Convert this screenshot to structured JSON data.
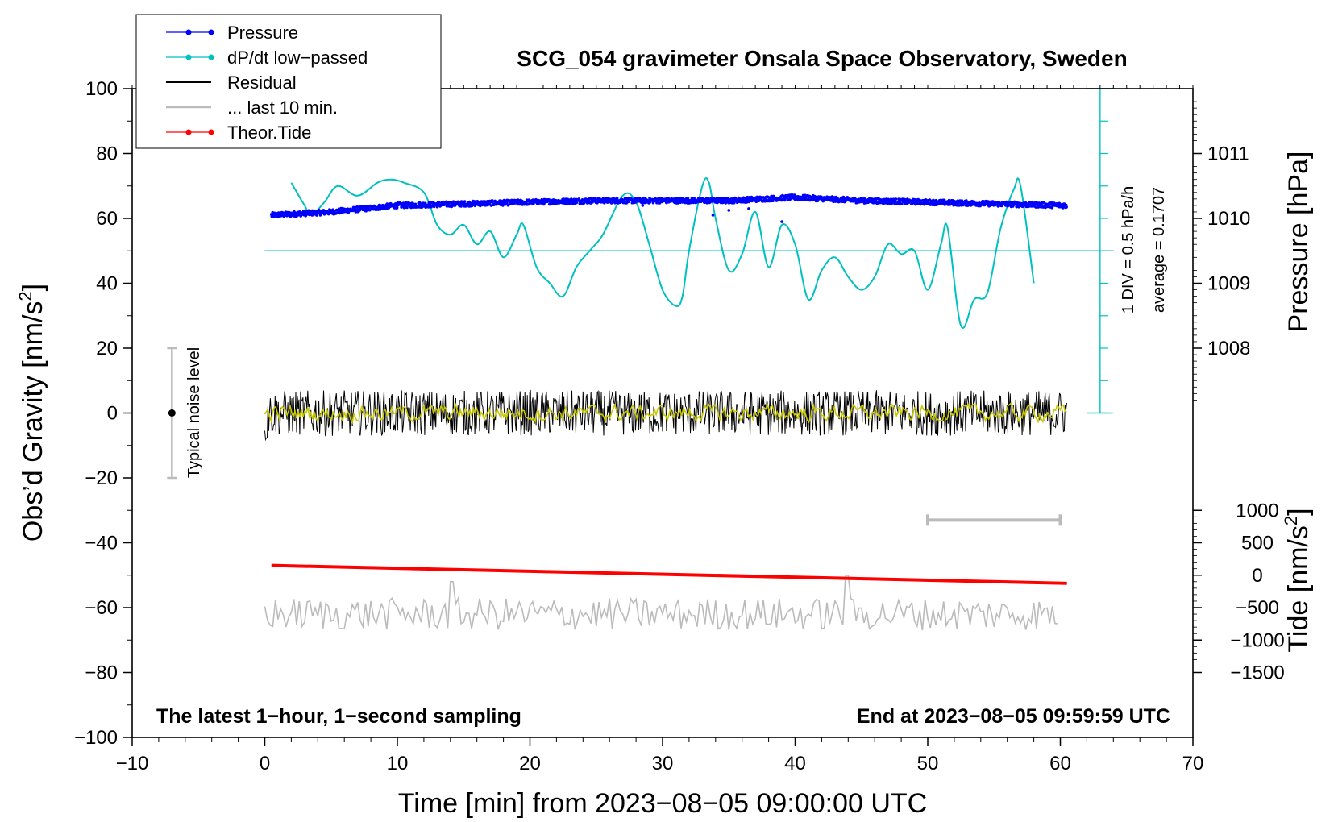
{
  "chart_data": {
    "type": "line",
    "title": "SCG_054 gravimeter Onsala Space Observatory, Sweden",
    "xlabel": "Time [min] from 2023−08−05 09:00:00 UTC",
    "ylabel_left": "Obs’d Gravity [nm/s",
    "ylabel_left_sup": "2",
    "ylabel_left_close": "]",
    "ylabel_right_top": "Pressure [hPa]",
    "ylabel_right_bottom": "Tide [nm/s",
    "ylabel_right_bottom_sup": "2",
    "ylabel_right_bottom_close": "]",
    "xlim": [
      -10,
      70
    ],
    "ylim": [
      -100,
      100
    ],
    "x_ticks": [
      -10,
      0,
      10,
      20,
      30,
      40,
      50,
      60,
      70
    ],
    "x_tick_labels": [
      "−10",
      "0",
      "10",
      "20",
      "30",
      "40",
      "50",
      "60",
      "70"
    ],
    "y_ticks": [
      -100,
      -80,
      -60,
      -40,
      -20,
      0,
      20,
      40,
      60,
      80,
      100
    ],
    "y_tick_labels": [
      "−100",
      "−80",
      "−60",
      "−40",
      "−20",
      "0",
      "20",
      "40",
      "60",
      "80",
      "100"
    ],
    "pressure_ticks": [
      1008,
      1009,
      1010,
      1011
    ],
    "pressure_tick_labels": [
      "1008",
      "1009",
      "1010",
      "1011"
    ],
    "pressure_axis": {
      "gravity_at_1008": 20,
      "gravity_per_hpa": 20
    },
    "tide_ticks": [
      -1500,
      -1000,
      -500,
      0,
      500,
      1000
    ],
    "tide_tick_labels": [
      "−1500",
      "−1000",
      "−500",
      "0",
      "500",
      "1000"
    ],
    "tide_axis": {
      "gravity_at_zero": -50,
      "gravity_per_nm": 0.02
    },
    "legend": [
      {
        "label": "Pressure",
        "color": "#0000ff",
        "marker": true
      },
      {
        "label": "dP/dt low−passed",
        "color": "#00c0c0",
        "marker": true
      },
      {
        "label": "Residual",
        "color": "#000000",
        "marker": false
      },
      {
        "label": "... last 10 min.",
        "color": "#bbbbbb",
        "marker": false
      },
      {
        "label": "Theor.Tide",
        "color": "#ff0000",
        "marker": true
      }
    ],
    "legend_position": "top-left",
    "series": [
      {
        "name": "Pressure",
        "color": "#0000ff",
        "x": [
          0.5,
          5,
          10,
          15,
          20,
          25,
          30,
          35,
          40,
          45,
          50,
          55,
          60.5
        ],
        "values": [
          61,
          62,
          64,
          64.5,
          65,
          65.5,
          65.5,
          65.5,
          66.5,
          65.5,
          65,
          64.5,
          64
        ]
      },
      {
        "name": "dP/dt low-passed",
        "color": "#00c0c0",
        "x": [
          2,
          3,
          3.5,
          4.5,
          5.5,
          7,
          8.5,
          9.5,
          10.5,
          12,
          13,
          14,
          15,
          16,
          17,
          18,
          19,
          19.5,
          20.5,
          21.5,
          22.5,
          23.5,
          24.5,
          25.5,
          27,
          28,
          29,
          30,
          31,
          31.5,
          32,
          33,
          33.5,
          34,
          35,
          36,
          37,
          38,
          39,
          40,
          41,
          42,
          43,
          44,
          45,
          46,
          47,
          48,
          49,
          50,
          51,
          51.5,
          52.5,
          53.5,
          54.5,
          55.5,
          56.5,
          57,
          58
        ],
        "values": [
          71,
          64,
          61,
          65,
          70,
          67,
          71,
          72,
          71,
          68,
          58,
          55,
          58,
          52,
          56,
          48,
          55,
          58,
          45,
          40,
          36,
          45,
          50,
          55,
          67,
          65,
          52,
          38,
          33,
          36,
          50,
          70,
          71,
          60,
          44,
          49,
          62,
          45,
          58,
          52,
          35,
          44,
          48,
          42,
          38,
          42,
          52,
          49,
          50,
          38,
          52,
          57,
          27,
          35,
          37,
          57,
          69,
          70,
          40
        ]
      },
      {
        "name": "dP/dt average line",
        "color": "#00c0c0",
        "x": [
          0,
          64
        ],
        "values": [
          50,
          50
        ]
      },
      {
        "name": "Residual",
        "color": "#000000",
        "x": [
          0,
          60.5
        ],
        "values": [
          0,
          0
        ],
        "noise_amplitude": 7
      },
      {
        "name": "Residual smoothed",
        "color": "#c8c800",
        "x": [
          0,
          60.5
        ],
        "values": [
          0,
          0
        ],
        "noise_amplitude": 2.5
      },
      {
        "name": "... last 10 min.",
        "color": "#bbbbbb",
        "x": [
          0,
          60
        ],
        "values": [
          -62,
          -62
        ],
        "noise_amplitude": 5
      },
      {
        "name": "Theor.Tide",
        "color": "#ff0000",
        "x": [
          0.5,
          60.5
        ],
        "values": [
          -47,
          -52.5
        ]
      }
    ],
    "annotations": {
      "noise_label": "Typical noise level",
      "noise_bar": {
        "x": -7,
        "y_low": -20,
        "y_high": 20
      },
      "div_label": "1 DIV = 0.5 hPa/h",
      "average_label": "average = 0.1707",
      "scale_bar": {
        "x1": 50,
        "x2": 60,
        "y": -33
      },
      "bottom_left_note": "The latest 1−hour, 1−second sampling",
      "bottom_right_note": "End at 2023−08−05 09:59:59 UTC"
    }
  }
}
